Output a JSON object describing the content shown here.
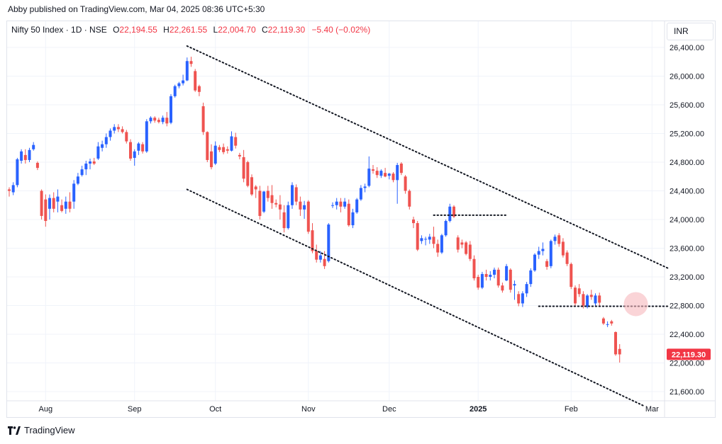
{
  "publisher": "Abby published on TradingView.com, Mar 04, 2025 08:36 UTC+5:30",
  "legend": {
    "symbol": "Nifty 50 Index · 1D · NSE",
    "o_label": "O",
    "o_value": "22,194.55",
    "h_label": "H",
    "h_value": "22,261.55",
    "l_label": "L",
    "l_value": "22,004.70",
    "c_label": "C",
    "c_value": "22,119.30",
    "change": "−5.40 (−0.02%)"
  },
  "currency": "INR",
  "last_price_label": "22,119.30",
  "brand": "TradingView",
  "colors": {
    "up": "#2962ff",
    "down": "#ef5350",
    "grid": "#f0f3fa",
    "last_price_bg": "#f23645",
    "highlight": "#f7b7bc"
  },
  "chart_data": {
    "type": "candlestick",
    "title": "Nifty 50 Index · 1D · NSE",
    "y_ticks": [
      21600,
      22000,
      22400,
      22800,
      23200,
      23600,
      24000,
      24400,
      24800,
      25200,
      25600,
      26000,
      26400
    ],
    "y_tick_labels": [
      "21,600.00",
      "22,000.00",
      "22,400.00",
      "22,800.00",
      "23,200.00",
      "23,600.00",
      "24,000.00",
      "24,400.00",
      "24,800.00",
      "25,200.00",
      "25,600.00",
      "26,000.00",
      "26,400.00"
    ],
    "ylim": [
      21450,
      26530
    ],
    "x_ticks": [
      {
        "label": "Aug",
        "index": 9
      },
      {
        "label": "Sep",
        "index": 31
      },
      {
        "label": "Oct",
        "index": 51
      },
      {
        "label": "Nov",
        "index": 74
      },
      {
        "label": "Dec",
        "index": 94
      },
      {
        "label": "2025",
        "index": 116
      },
      {
        "label": "Feb",
        "index": 139
      },
      {
        "label": "Mar",
        "index": 159
      }
    ],
    "grid": true,
    "annotations": [
      {
        "kind": "trendline",
        "name": "upper-channel",
        "from": [
          44,
          26420
        ],
        "to": [
          163,
          23320
        ]
      },
      {
        "kind": "trendline",
        "name": "lower-channel",
        "from": [
          44,
          24420
        ],
        "to": [
          157,
          21400
        ]
      },
      {
        "kind": "horizontal",
        "name": "resistance-dec",
        "from": [
          105,
          24060
        ],
        "to": [
          123,
          24060
        ]
      },
      {
        "kind": "horizontal",
        "name": "support-feb",
        "from": [
          131,
          22790
        ],
        "to": [
          163,
          22790
        ]
      },
      {
        "kind": "circle",
        "name": "breakdown-highlight",
        "center": [
          155,
          22820
        ]
      }
    ],
    "last_price": 22119.3,
    "candles": [
      {
        "o": 24420,
        "h": 24450,
        "l": 24320,
        "c": 24400
      },
      {
        "o": 24380,
        "h": 24520,
        "l": 24340,
        "c": 24480
      },
      {
        "o": 24480,
        "h": 24860,
        "l": 24450,
        "c": 24840
      },
      {
        "o": 24820,
        "h": 24980,
        "l": 24780,
        "c": 24950
      },
      {
        "o": 24900,
        "h": 24980,
        "l": 24780,
        "c": 24830
      },
      {
        "o": 24830,
        "h": 25000,
        "l": 24800,
        "c": 24970
      },
      {
        "o": 24980,
        "h": 25080,
        "l": 24960,
        "c": 25040
      },
      {
        "o": 24790,
        "h": 24810,
        "l": 24690,
        "c": 24720
      },
      {
        "o": 24400,
        "h": 24420,
        "l": 24000,
        "c": 24050
      },
      {
        "o": 24280,
        "h": 24350,
        "l": 23900,
        "c": 23980
      },
      {
        "o": 24150,
        "h": 24350,
        "l": 24000,
        "c": 24300
      },
      {
        "o": 24300,
        "h": 24380,
        "l": 24100,
        "c": 24150
      },
      {
        "o": 24250,
        "h": 24420,
        "l": 24100,
        "c": 24320
      },
      {
        "o": 24200,
        "h": 24280,
        "l": 24100,
        "c": 24120
      },
      {
        "o": 24150,
        "h": 24320,
        "l": 24080,
        "c": 24250
      },
      {
        "o": 24250,
        "h": 24380,
        "l": 24100,
        "c": 24150
      },
      {
        "o": 24250,
        "h": 24550,
        "l": 24150,
        "c": 24500
      },
      {
        "o": 24500,
        "h": 24650,
        "l": 24480,
        "c": 24600
      },
      {
        "o": 24620,
        "h": 24750,
        "l": 24600,
        "c": 24700
      },
      {
        "o": 24700,
        "h": 24820,
        "l": 24620,
        "c": 24780
      },
      {
        "o": 24780,
        "h": 24850,
        "l": 24700,
        "c": 24810
      },
      {
        "o": 24810,
        "h": 24860,
        "l": 24760,
        "c": 24780
      },
      {
        "o": 24850,
        "h": 25080,
        "l": 24830,
        "c": 25020
      },
      {
        "o": 25000,
        "h": 25100,
        "l": 24950,
        "c": 25050
      },
      {
        "o": 25050,
        "h": 25200,
        "l": 25000,
        "c": 25150
      },
      {
        "o": 25150,
        "h": 25270,
        "l": 25100,
        "c": 25240
      },
      {
        "o": 25240,
        "h": 25330,
        "l": 25200,
        "c": 25290
      },
      {
        "o": 25290,
        "h": 25330,
        "l": 25220,
        "c": 25260
      },
      {
        "o": 25260,
        "h": 25300,
        "l": 25200,
        "c": 25220
      },
      {
        "o": 25220,
        "h": 25250,
        "l": 25060,
        "c": 25090
      },
      {
        "o": 25080,
        "h": 25120,
        "l": 24820,
        "c": 24850
      },
      {
        "o": 24860,
        "h": 24980,
        "l": 24750,
        "c": 24950
      },
      {
        "o": 24960,
        "h": 25080,
        "l": 24900,
        "c": 25060
      },
      {
        "o": 25050,
        "h": 25080,
        "l": 24920,
        "c": 24950
      },
      {
        "o": 24950,
        "h": 25400,
        "l": 24930,
        "c": 25370
      },
      {
        "o": 25370,
        "h": 25440,
        "l": 25340,
        "c": 25420
      },
      {
        "o": 25420,
        "h": 25440,
        "l": 25350,
        "c": 25380
      },
      {
        "o": 25390,
        "h": 25420,
        "l": 25340,
        "c": 25360
      },
      {
        "o": 25360,
        "h": 25450,
        "l": 25330,
        "c": 25420
      },
      {
        "o": 25420,
        "h": 25500,
        "l": 25300,
        "c": 25340
      },
      {
        "o": 25350,
        "h": 25750,
        "l": 25330,
        "c": 25720
      },
      {
        "o": 25720,
        "h": 25880,
        "l": 25700,
        "c": 25860
      },
      {
        "o": 25860,
        "h": 25920,
        "l": 25830,
        "c": 25900
      },
      {
        "o": 25900,
        "h": 26020,
        "l": 25870,
        "c": 25940
      },
      {
        "o": 25940,
        "h": 26260,
        "l": 25930,
        "c": 26210
      },
      {
        "o": 26210,
        "h": 26270,
        "l": 26130,
        "c": 26170
      },
      {
        "o": 26070,
        "h": 26100,
        "l": 25780,
        "c": 25800
      },
      {
        "o": 25860,
        "h": 25880,
        "l": 25720,
        "c": 25780
      },
      {
        "o": 25580,
        "h": 25630,
        "l": 25180,
        "c": 25220
      },
      {
        "o": 25220,
        "h": 25230,
        "l": 24800,
        "c": 24830
      },
      {
        "o": 24950,
        "h": 25050,
        "l": 24700,
        "c": 24730
      },
      {
        "o": 24780,
        "h": 25090,
        "l": 24760,
        "c": 25030
      },
      {
        "o": 25010,
        "h": 25040,
        "l": 24940,
        "c": 24970
      },
      {
        "o": 25010,
        "h": 25060,
        "l": 24910,
        "c": 24940
      },
      {
        "o": 24980,
        "h": 25020,
        "l": 24920,
        "c": 24960
      },
      {
        "o": 24960,
        "h": 25230,
        "l": 24950,
        "c": 25160
      },
      {
        "o": 25150,
        "h": 25210,
        "l": 24990,
        "c": 25030
      },
      {
        "o": 24900,
        "h": 24930,
        "l": 24840,
        "c": 24880
      },
      {
        "o": 24870,
        "h": 24970,
        "l": 24520,
        "c": 24570
      },
      {
        "o": 24800,
        "h": 24820,
        "l": 24450,
        "c": 24470
      },
      {
        "o": 24590,
        "h": 24630,
        "l": 24330,
        "c": 24350
      },
      {
        "o": 24460,
        "h": 24480,
        "l": 24300,
        "c": 24420
      },
      {
        "o": 24400,
        "h": 24470,
        "l": 24000,
        "c": 24050
      },
      {
        "o": 24110,
        "h": 24400,
        "l": 24090,
        "c": 24390
      },
      {
        "o": 24400,
        "h": 24470,
        "l": 24250,
        "c": 24300
      },
      {
        "o": 24340,
        "h": 24480,
        "l": 24150,
        "c": 24230
      },
      {
        "o": 24230,
        "h": 24280,
        "l": 24170,
        "c": 24210
      },
      {
        "o": 24210,
        "h": 24340,
        "l": 24000,
        "c": 24140
      },
      {
        "o": 24100,
        "h": 24200,
        "l": 23820,
        "c": 23880
      },
      {
        "o": 23880,
        "h": 24250,
        "l": 23860,
        "c": 24200
      },
      {
        "o": 24200,
        "h": 24520,
        "l": 24150,
        "c": 24480
      },
      {
        "o": 24450,
        "h": 24490,
        "l": 24200,
        "c": 24250
      },
      {
        "o": 24250,
        "h": 24320,
        "l": 24050,
        "c": 24140
      },
      {
        "o": 24140,
        "h": 24260,
        "l": 24010,
        "c": 24200
      },
      {
        "o": 24250,
        "h": 24270,
        "l": 23800,
        "c": 23830
      },
      {
        "o": 23850,
        "h": 23950,
        "l": 23530,
        "c": 23560
      },
      {
        "o": 23560,
        "h": 23650,
        "l": 23400,
        "c": 23440
      },
      {
        "o": 23440,
        "h": 23560,
        "l": 23400,
        "c": 23500
      },
      {
        "o": 23450,
        "h": 23560,
        "l": 23310,
        "c": 23350
      },
      {
        "o": 23420,
        "h": 23950,
        "l": 23400,
        "c": 23930
      },
      {
        "o": 24200,
        "h": 24240,
        "l": 24160,
        "c": 24200
      },
      {
        "o": 24200,
        "h": 24300,
        "l": 24140,
        "c": 24250
      },
      {
        "o": 24250,
        "h": 24300,
        "l": 24100,
        "c": 24180
      },
      {
        "o": 24180,
        "h": 24300,
        "l": 24150,
        "c": 24250
      },
      {
        "o": 24220,
        "h": 24280,
        "l": 23900,
        "c": 23920
      },
      {
        "o": 23920,
        "h": 24150,
        "l": 23880,
        "c": 24100
      },
      {
        "o": 24100,
        "h": 24300,
        "l": 24080,
        "c": 24280
      },
      {
        "o": 24280,
        "h": 24480,
        "l": 24260,
        "c": 24440
      },
      {
        "o": 24440,
        "h": 24500,
        "l": 24380,
        "c": 24460
      },
      {
        "o": 24470,
        "h": 24880,
        "l": 24450,
        "c": 24710
      },
      {
        "o": 24700,
        "h": 24760,
        "l": 24640,
        "c": 24680
      },
      {
        "o": 24680,
        "h": 24730,
        "l": 24580,
        "c": 24620
      },
      {
        "o": 24610,
        "h": 24700,
        "l": 24580,
        "c": 24680
      },
      {
        "o": 24650,
        "h": 24720,
        "l": 24590,
        "c": 24600
      },
      {
        "o": 24610,
        "h": 24650,
        "l": 24560,
        "c": 24640
      },
      {
        "o": 24640,
        "h": 24660,
        "l": 24520,
        "c": 24550
      },
      {
        "o": 24550,
        "h": 24790,
        "l": 24220,
        "c": 24760
      },
      {
        "o": 24780,
        "h": 24800,
        "l": 24620,
        "c": 24650
      },
      {
        "o": 24600,
        "h": 24620,
        "l": 24360,
        "c": 24400
      },
      {
        "o": 24400,
        "h": 24420,
        "l": 24140,
        "c": 24180
      },
      {
        "o": 24000,
        "h": 24040,
        "l": 23880,
        "c": 23950
      },
      {
        "o": 23950,
        "h": 23980,
        "l": 23560,
        "c": 23580
      },
      {
        "o": 23700,
        "h": 23780,
        "l": 23660,
        "c": 23740
      },
      {
        "o": 23720,
        "h": 23760,
        "l": 23640,
        "c": 23730
      },
      {
        "o": 23720,
        "h": 23800,
        "l": 23660,
        "c": 23760
      },
      {
        "o": 23760,
        "h": 23900,
        "l": 23600,
        "c": 23660
      },
      {
        "o": 23660,
        "h": 23720,
        "l": 23480,
        "c": 23540
      },
      {
        "o": 23540,
        "h": 23800,
        "l": 23520,
        "c": 23780
      },
      {
        "o": 23780,
        "h": 24000,
        "l": 23760,
        "c": 23980
      },
      {
        "o": 23980,
        "h": 24220,
        "l": 23960,
        "c": 24180
      },
      {
        "o": 24180,
        "h": 24200,
        "l": 24020,
        "c": 24040
      },
      {
        "o": 23750,
        "h": 23780,
        "l": 23540,
        "c": 23580
      },
      {
        "o": 23680,
        "h": 23720,
        "l": 23600,
        "c": 23650
      },
      {
        "o": 23680,
        "h": 23700,
        "l": 23500,
        "c": 23520
      },
      {
        "o": 23650,
        "h": 23700,
        "l": 23420,
        "c": 23450
      },
      {
        "o": 23450,
        "h": 23500,
        "l": 23150,
        "c": 23180
      },
      {
        "o": 23200,
        "h": 23230,
        "l": 23020,
        "c": 23050
      },
      {
        "o": 23050,
        "h": 23270,
        "l": 23030,
        "c": 23240
      },
      {
        "o": 23240,
        "h": 23300,
        "l": 23150,
        "c": 23200
      },
      {
        "o": 23200,
        "h": 23280,
        "l": 23150,
        "c": 23230
      },
      {
        "o": 23230,
        "h": 23330,
        "l": 23180,
        "c": 23300
      },
      {
        "o": 23300,
        "h": 23330,
        "l": 23050,
        "c": 23080
      },
      {
        "o": 23080,
        "h": 23120,
        "l": 22980,
        "c": 23010
      },
      {
        "o": 23150,
        "h": 23380,
        "l": 23140,
        "c": 23350
      },
      {
        "o": 23300,
        "h": 23320,
        "l": 22980,
        "c": 23020
      },
      {
        "o": 23080,
        "h": 23150,
        "l": 22880,
        "c": 23100
      },
      {
        "o": 22960,
        "h": 23000,
        "l": 22790,
        "c": 22830
      },
      {
        "o": 22830,
        "h": 23000,
        "l": 22780,
        "c": 22970
      },
      {
        "o": 22970,
        "h": 23130,
        "l": 22920,
        "c": 23100
      },
      {
        "o": 23100,
        "h": 23320,
        "l": 23060,
        "c": 23290
      },
      {
        "o": 23290,
        "h": 23530,
        "l": 23270,
        "c": 23510
      },
      {
        "o": 23510,
        "h": 23620,
        "l": 23450,
        "c": 23560
      },
      {
        "o": 23560,
        "h": 23680,
        "l": 23500,
        "c": 23590
      },
      {
        "o": 23420,
        "h": 23450,
        "l": 23300,
        "c": 23340
      },
      {
        "o": 23350,
        "h": 23720,
        "l": 23320,
        "c": 23700
      },
      {
        "o": 23700,
        "h": 23790,
        "l": 23650,
        "c": 23760
      },
      {
        "o": 23780,
        "h": 23810,
        "l": 23620,
        "c": 23660
      },
      {
        "o": 23690,
        "h": 23740,
        "l": 23470,
        "c": 23500
      },
      {
        "o": 23540,
        "h": 23570,
        "l": 23350,
        "c": 23380
      },
      {
        "o": 23380,
        "h": 23400,
        "l": 23030,
        "c": 23060
      },
      {
        "o": 23050,
        "h": 23080,
        "l": 22800,
        "c": 22830
      },
      {
        "o": 23040,
        "h": 23100,
        "l": 22920,
        "c": 22960
      },
      {
        "o": 22960,
        "h": 23000,
        "l": 22760,
        "c": 22800
      },
      {
        "o": 22780,
        "h": 22960,
        "l": 22760,
        "c": 22940
      },
      {
        "o": 22950,
        "h": 23020,
        "l": 22880,
        "c": 22920
      },
      {
        "o": 22830,
        "h": 22970,
        "l": 22800,
        "c": 22940
      },
      {
        "o": 22940,
        "h": 22980,
        "l": 22800,
        "c": 22840
      },
      {
        "o": 22620,
        "h": 22640,
        "l": 22530,
        "c": 22550
      },
      {
        "o": 22530,
        "h": 22580,
        "l": 22500,
        "c": 22540
      },
      {
        "o": 22580,
        "h": 22600,
        "l": 22520,
        "c": 22550
      },
      {
        "o": 22430,
        "h": 22440,
        "l": 22100,
        "c": 22120
      },
      {
        "o": 22195,
        "h": 22262,
        "l": 22005,
        "c": 22119
      }
    ]
  }
}
